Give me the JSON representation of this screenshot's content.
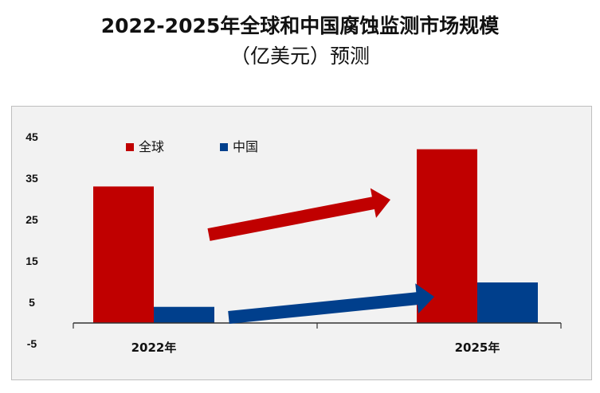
{
  "title_line1": "2022-2025年全球和中国腐蚀监测市场规模",
  "title_line2": "（亿美元）预测",
  "chart_data": {
    "type": "bar",
    "title": "2022-2025年全球和中国腐蚀监测市场规模（亿美元）预测",
    "categories": [
      "2022年",
      "2025年"
    ],
    "series": [
      {
        "name": "全球",
        "values": [
          33,
          42
        ],
        "color": "#c00000"
      },
      {
        "name": "中国",
        "values": [
          3.9,
          9.8
        ],
        "color": "#003f8c"
      }
    ],
    "ylim": [
      -5,
      45
    ],
    "yticks": [
      -5,
      5,
      15,
      25,
      35,
      45
    ],
    "legend": "top-left",
    "grid": false,
    "annotations": [
      "red-growth-arrow",
      "blue-growth-arrow"
    ]
  }
}
